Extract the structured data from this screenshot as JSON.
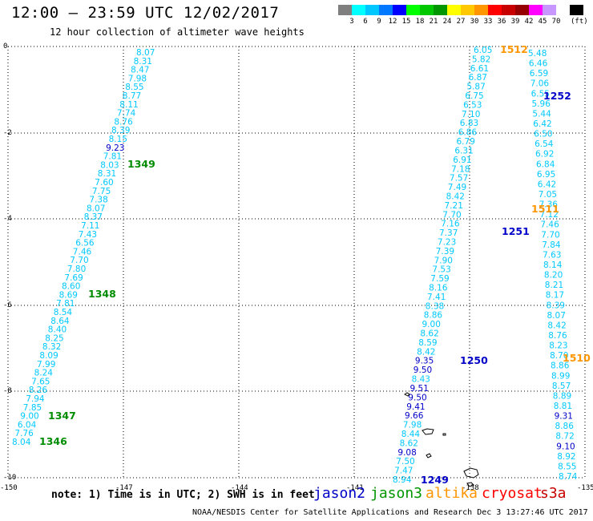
{
  "header": {
    "title": "12:00 — 23:59 UTC 12/02/2017",
    "subtitle": "12 hour collection of altimeter wave heights"
  },
  "legend": {
    "swatches": [
      {
        "color": "#7f7f7f",
        "label": ""
      },
      {
        "color": "#00ffff",
        "label": "3"
      },
      {
        "color": "#00c8ff",
        "label": "6"
      },
      {
        "color": "#0078ff",
        "label": "9"
      },
      {
        "color": "#0000ff",
        "label": "12"
      },
      {
        "color": "#00ff00",
        "label": "15"
      },
      {
        "color": "#00c800",
        "label": "18"
      },
      {
        "color": "#009600",
        "label": "21"
      },
      {
        "color": "#ffff00",
        "label": "24"
      },
      {
        "color": "#ffc800",
        "label": "27"
      },
      {
        "color": "#ff9600",
        "label": "30"
      },
      {
        "color": "#ff0000",
        "label": "33"
      },
      {
        "color": "#c80000",
        "label": "36"
      },
      {
        "color": "#960000",
        "label": "39"
      },
      {
        "color": "#ff00ff",
        "label": "42"
      },
      {
        "color": "#c896ff",
        "label": "45"
      },
      {
        "color": "#ffffff",
        "label": "70"
      },
      {
        "color": "#000000",
        "label": ""
      }
    ],
    "unit": "(ft)"
  },
  "map": {
    "lon_ticks": [
      "-150",
      "-147",
      "-144",
      "-141",
      "-138",
      "-135"
    ],
    "lat_ticks": [
      "0",
      "-2",
      "-4",
      "-6",
      "-8",
      "-10"
    ],
    "colors": {
      "cyan": "#00c8ff",
      "blue": "#0000c8",
      "green": "#008c00",
      "orange": "#ff9600"
    },
    "track_labels": [
      {
        "text": "1349",
        "color": "green"
      },
      {
        "text": "1348",
        "color": "green"
      },
      {
        "text": "1347",
        "color": "green"
      },
      {
        "text": "1346",
        "color": "green"
      },
      {
        "text": "1512",
        "color": "orange"
      },
      {
        "text": "1252",
        "color": "blue"
      },
      {
        "text": "1511",
        "color": "orange"
      },
      {
        "text": "1251",
        "color": "blue"
      },
      {
        "text": "1250",
        "color": "blue"
      },
      {
        "text": "1510",
        "color": "orange"
      },
      {
        "text": "1249",
        "color": "blue"
      }
    ],
    "track_a": [
      [
        "8.07",
        "cyan"
      ],
      [
        "8.31",
        "cyan"
      ],
      [
        "8.47",
        "cyan"
      ],
      [
        "7.98",
        "cyan"
      ],
      [
        "8.55",
        "cyan"
      ],
      [
        "8.77",
        "cyan"
      ],
      [
        "8.11",
        "cyan"
      ],
      [
        "7.74",
        "cyan"
      ],
      [
        "8.76",
        "cyan"
      ],
      [
        "8.39",
        "cyan"
      ],
      [
        "8.15",
        "cyan"
      ],
      [
        "9.23",
        "blue"
      ],
      [
        "7.81",
        "cyan"
      ],
      [
        "8.03",
        "cyan"
      ],
      [
        "8.31",
        "cyan"
      ],
      [
        "7.60",
        "cyan"
      ],
      [
        "7.75",
        "cyan"
      ],
      [
        "7.38",
        "cyan"
      ],
      [
        "8.07",
        "cyan"
      ],
      [
        "8.37",
        "cyan"
      ],
      [
        "7.11",
        "cyan"
      ],
      [
        "7.43",
        "cyan"
      ],
      [
        "6.56",
        "cyan"
      ],
      [
        "7.46",
        "cyan"
      ],
      [
        "7.70",
        "cyan"
      ],
      [
        "7.80",
        "cyan"
      ],
      [
        "7.69",
        "cyan"
      ],
      [
        "8.60",
        "cyan"
      ],
      [
        "8.69",
        "cyan"
      ],
      [
        "7.81",
        "cyan"
      ],
      [
        "8.54",
        "cyan"
      ],
      [
        "8.64",
        "cyan"
      ],
      [
        "8.40",
        "cyan"
      ],
      [
        "8.25",
        "cyan"
      ],
      [
        "8.32",
        "cyan"
      ],
      [
        "8.09",
        "cyan"
      ],
      [
        "7.99",
        "cyan"
      ],
      [
        "8.24",
        "cyan"
      ],
      [
        "7.65",
        "cyan"
      ],
      [
        "8.26",
        "cyan"
      ],
      [
        "7.94",
        "cyan"
      ],
      [
        "7.85",
        "cyan"
      ],
      [
        "9.00",
        "cyan"
      ],
      [
        "6.04",
        "cyan"
      ],
      [
        "7.76",
        "cyan"
      ],
      [
        "8.04",
        "cyan"
      ]
    ],
    "track_b": [
      [
        "6.05",
        "cyan"
      ],
      [
        "5.82",
        "cyan"
      ],
      [
        "6.61",
        "cyan"
      ],
      [
        "6.87",
        "cyan"
      ],
      [
        "5.87",
        "cyan"
      ],
      [
        "6.75",
        "cyan"
      ],
      [
        "6.53",
        "cyan"
      ],
      [
        "7.10",
        "cyan"
      ],
      [
        "6.83",
        "cyan"
      ],
      [
        "6.86",
        "cyan"
      ],
      [
        "6.79",
        "cyan"
      ],
      [
        "6.31",
        "cyan"
      ],
      [
        "6.91",
        "cyan"
      ],
      [
        "7.18",
        "cyan"
      ],
      [
        "7.57",
        "cyan"
      ],
      [
        "7.49",
        "cyan"
      ],
      [
        "8.42",
        "cyan"
      ],
      [
        "7.21",
        "cyan"
      ],
      [
        "7.70",
        "cyan"
      ],
      [
        "7.16",
        "cyan"
      ],
      [
        "7.37",
        "cyan"
      ],
      [
        "7.23",
        "cyan"
      ],
      [
        "7.39",
        "cyan"
      ],
      [
        "7.90",
        "cyan"
      ],
      [
        "7.53",
        "cyan"
      ],
      [
        "7.59",
        "cyan"
      ],
      [
        "8.16",
        "cyan"
      ],
      [
        "7.41",
        "cyan"
      ],
      [
        "8.38",
        "cyan"
      ],
      [
        "8.86",
        "cyan"
      ],
      [
        "9.00",
        "cyan"
      ],
      [
        "8.62",
        "cyan"
      ],
      [
        "8.59",
        "cyan"
      ],
      [
        "8.42",
        "cyan"
      ],
      [
        "9.35",
        "blue"
      ],
      [
        "9.50",
        "blue"
      ],
      [
        "8.43",
        "cyan"
      ],
      [
        "9.51",
        "blue"
      ],
      [
        "9.50",
        "blue"
      ],
      [
        "9.41",
        "blue"
      ],
      [
        "9.66",
        "blue"
      ],
      [
        "7.98",
        "cyan"
      ],
      [
        "8.44",
        "cyan"
      ],
      [
        "8.62",
        "cyan"
      ],
      [
        "9.08",
        "blue"
      ],
      [
        "7.50",
        "cyan"
      ],
      [
        "7.47",
        "cyan"
      ],
      [
        "8.94",
        "cyan"
      ]
    ],
    "track_c": [
      [
        "5.48",
        "cyan"
      ],
      [
        "6.46",
        "cyan"
      ],
      [
        "6.59",
        "cyan"
      ],
      [
        "7.06",
        "cyan"
      ],
      [
        "6.55",
        "cyan"
      ],
      [
        "5.96",
        "cyan"
      ],
      [
        "5.44",
        "cyan"
      ],
      [
        "6.42",
        "cyan"
      ],
      [
        "6.50",
        "cyan"
      ],
      [
        "6.54",
        "cyan"
      ],
      [
        "6.92",
        "cyan"
      ],
      [
        "6.84",
        "cyan"
      ],
      [
        "6.95",
        "cyan"
      ],
      [
        "6.42",
        "cyan"
      ],
      [
        "7.05",
        "cyan"
      ],
      [
        "7.36",
        "cyan"
      ],
      [
        "7.12",
        "cyan"
      ],
      [
        "7.46",
        "cyan"
      ],
      [
        "7.70",
        "cyan"
      ],
      [
        "7.84",
        "cyan"
      ],
      [
        "7.63",
        "cyan"
      ],
      [
        "8.14",
        "cyan"
      ],
      [
        "8.20",
        "cyan"
      ],
      [
        "8.21",
        "cyan"
      ],
      [
        "8.17",
        "cyan"
      ],
      [
        "8.39",
        "cyan"
      ],
      [
        "8.07",
        "cyan"
      ],
      [
        "8.42",
        "cyan"
      ],
      [
        "8.76",
        "cyan"
      ],
      [
        "8.23",
        "cyan"
      ],
      [
        "8.70",
        "cyan"
      ],
      [
        "8.86",
        "cyan"
      ],
      [
        "8.99",
        "cyan"
      ],
      [
        "8.57",
        "cyan"
      ],
      [
        "8.89",
        "cyan"
      ],
      [
        "8.81",
        "cyan"
      ],
      [
        "9.31",
        "blue"
      ],
      [
        "8.86",
        "cyan"
      ],
      [
        "8.72",
        "cyan"
      ],
      [
        "9.10",
        "blue"
      ],
      [
        "8.92",
        "cyan"
      ],
      [
        "8.55",
        "cyan"
      ],
      [
        "8.74",
        "cyan"
      ]
    ]
  },
  "note": "note: 1) Time is in UTC; 2) SWH is in feet",
  "satellites": [
    {
      "name": "jason2",
      "color": "#0000c8"
    },
    {
      "name": "jason3",
      "color": "#009600"
    },
    {
      "name": "altika",
      "color": "#ff9600"
    },
    {
      "name": "cryosat",
      "color": "#ff0000"
    },
    {
      "name": "s3a",
      "color": "#c80000"
    }
  ],
  "footer": "NOAA/NESDIS Center for Satellite Applications and Research   Dec  3 13:27:46 UTC 2017"
}
